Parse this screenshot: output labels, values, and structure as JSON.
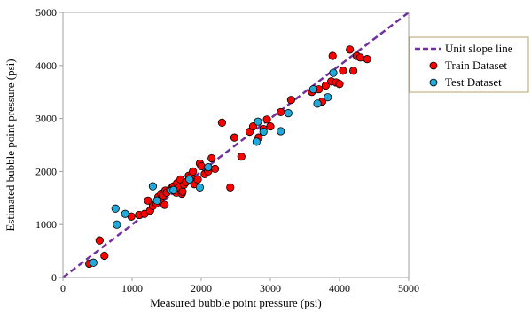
{
  "chart_data": {
    "type": "scatter",
    "xlabel": "Measured bubble point pressure (psi)",
    "ylabel": "Estimated bubble point pressure (psi)",
    "xlim": [
      0,
      5000
    ],
    "ylim": [
      0,
      5000
    ],
    "xticks": [
      0,
      1000,
      2000,
      3000,
      4000,
      5000
    ],
    "yticks": [
      0,
      1000,
      2000,
      3000,
      4000,
      5000
    ],
    "grid": false,
    "legend_position": "top-right",
    "reference_line": {
      "name": "Unit slope line",
      "x": [
        0,
        5000
      ],
      "y": [
        0,
        5000
      ],
      "color": "#7030a0",
      "style": "dashed"
    },
    "series": [
      {
        "name": "Train Dataset",
        "color": "#ff0000",
        "x": [
          380,
          530,
          600,
          990,
          1100,
          1180,
          1230,
          1260,
          1300,
          1350,
          1380,
          1400,
          1420,
          1450,
          1470,
          1480,
          1500,
          1550,
          1580,
          1600,
          1620,
          1640,
          1650,
          1680,
          1700,
          1720,
          1730,
          1750,
          1780,
          1820,
          1850,
          1880,
          1900,
          1950,
          1980,
          2000,
          2050,
          2100,
          2150,
          2200,
          2300,
          2420,
          2480,
          2580,
          2700,
          2750,
          2830,
          2900,
          2950,
          3000,
          3150,
          3300,
          3600,
          3700,
          3750,
          3800,
          3880,
          3900,
          3950,
          4000,
          4050,
          4150,
          4200,
          4250,
          4300,
          4400
        ],
        "y": [
          260,
          700,
          410,
          1150,
          1180,
          1200,
          1450,
          1260,
          1350,
          1400,
          1520,
          1450,
          1580,
          1550,
          1370,
          1640,
          1600,
          1660,
          1700,
          1720,
          1650,
          1600,
          1780,
          1700,
          1850,
          1580,
          1620,
          1750,
          1800,
          1920,
          1900,
          2000,
          1760,
          1850,
          2150,
          2100,
          1950,
          2000,
          2250,
          2050,
          2920,
          1700,
          2640,
          2280,
          2750,
          2850,
          2640,
          2800,
          2980,
          2850,
          3120,
          3350,
          3500,
          3550,
          3320,
          3620,
          3700,
          4180,
          3680,
          3650,
          3900,
          4300,
          3900,
          4180,
          4150,
          4120
        ]
      },
      {
        "name": "Test Dataset",
        "color": "#21a9d9",
        "x": [
          440,
          760,
          780,
          900,
          1300,
          1360,
          1570,
          1600,
          1830,
          1980,
          2100,
          2800,
          2820,
          2900,
          3150,
          3260,
          3620,
          3680,
          3830,
          3910
        ],
        "y": [
          280,
          1300,
          1000,
          1200,
          1720,
          1450,
          1640,
          1650,
          1850,
          1700,
          2080,
          2560,
          2940,
          2750,
          2760,
          3100,
          3550,
          3280,
          3400,
          3860
        ]
      }
    ]
  }
}
